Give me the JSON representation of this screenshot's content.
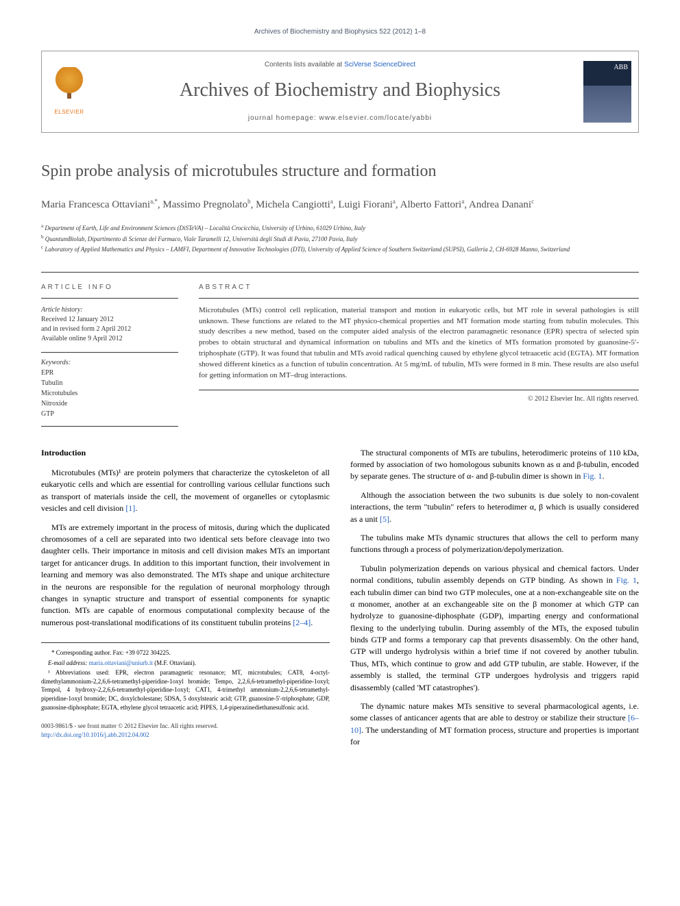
{
  "journal_ref": "Archives of Biochemistry and Biophysics 522 (2012) 1–8",
  "header": {
    "contents_prefix": "Contents lists available at ",
    "contents_link": "SciVerse ScienceDirect",
    "journal_name": "Archives of Biochemistry and Biophysics",
    "homepage_prefix": "journal homepage: ",
    "homepage_url": "www.elsevier.com/locate/yabbi",
    "elsevier": "ELSEVIER",
    "cover_abbr": "ABB"
  },
  "article": {
    "title": "Spin probe analysis of microtubules structure and formation"
  },
  "authors": [
    {
      "name": "Maria Francesca Ottaviani",
      "aff": "a,",
      "corr": "*"
    },
    {
      "name": "Massimo Pregnolato",
      "aff": "b"
    },
    {
      "name": "Michela Cangiotti",
      "aff": "a"
    },
    {
      "name": "Luigi Fiorani",
      "aff": "a"
    },
    {
      "name": "Alberto Fattori",
      "aff": "a"
    },
    {
      "name": "Andrea Danani",
      "aff": "c"
    }
  ],
  "affiliations": [
    {
      "key": "a",
      "text": "Department of Earth, Life and Environment Sciences (DiSTeVA) – Località Crocicchia, University of Urbino, 61029 Urbino, Italy"
    },
    {
      "key": "b",
      "text": "QuantumBiolab, Dipartimento di Scienze del Farmaco, Viale Taramelli 12, Università degli Studi di Pavia, 27100 Pavia, Italy"
    },
    {
      "key": "c",
      "text": "Laboratory of Applied Mathematics and Physics – LAMFI, Department of Innovative Technologies (DTI), University of Applied Science of Southern Switzerland (SUPSI), Galleria 2, CH-6928 Manno, Switzerland"
    }
  ],
  "info": {
    "section_label": "ARTICLE INFO",
    "history_label": "Article history:",
    "history": "Received 12 January 2012\nand in revised form 2 April 2012\nAvailable online 9 April 2012",
    "keywords_label": "Keywords:",
    "keywords": "EPR\nTubulin\nMicrotubules\nNitroxide\nGTP"
  },
  "abstract": {
    "section_label": "ABSTRACT",
    "text": "Microtubules (MTs) control cell replication, material transport and motion in eukaryotic cells, but MT role in several pathologies is still unknown. These functions are related to the MT physico-chemical properties and MT formation mode starting from tubulin molecules. This study describes a new method, based on the computer aided analysis of the electron paramagnetic resonance (EPR) spectra of selected spin probes to obtain structural and dynamical information on tubulins and MTs and the kinetics of MTs formation promoted by guanosine-5′-triphosphate (GTP). It was found that tubulin and MTs avoid radical quenching caused by ethylene glycol tetraacetic acid (EGTA). MT formation showed different kinetics as a function of tubulin concentration. At 5 mg/mL of tubulin, MTs were formed in 8 min. These results are also useful for getting information on MT–drug interactions.",
    "copyright": "© 2012 Elsevier Inc. All rights reserved."
  },
  "body": {
    "intro_heading": "Introduction",
    "left_paras": [
      "Microtubules (MTs)¹ are protein polymers that characterize the cytoskeleton of all eukaryotic cells and which are essential for controlling various cellular functions such as transport of materials inside the cell, the movement of organelles or cytoplasmic vesicles and cell division [1].",
      "MTs are extremely important in the process of mitosis, during which the duplicated chromosomes of a cell are separated into two identical sets before cleavage into two daughter cells. Their importance in mitosis and cell division makes MTs an important target for anticancer drugs. In addition to this important function, their involvement in learning and memory was also demonstrated. The MTs shape and unique architecture in the neurons are responsible for the regulation of neuronal morphology through changes in synaptic structure and transport of essential components for synaptic function. MTs are capable of enormous computational complexity because of the numerous post-translational modifications of its constituent tubulin proteins [2–4]."
    ],
    "right_paras": [
      "The structural components of MTs are tubulins, heterodimeric proteins of 110 kDa, formed by association of two homologous subunits known as α and β-tubulin, encoded by separate genes. The structure of α- and β-tubulin dimer is shown in Fig. 1.",
      "Although the association between the two subunits is due solely to non-covalent interactions, the term \"tubulin\" refers to heterodimer α, β which is usually considered as a unit [5].",
      "The tubulins make MTs dynamic structures that allows the cell to perform many functions through a process of polymerization/depolymerization.",
      "Tubulin polymerization depends on various physical and chemical factors. Under normal conditions, tubulin assembly depends on GTP binding. As shown in Fig. 1, each tubulin dimer can bind two GTP molecules, one at a non-exchangeable site on the α monomer, another at an exchangeable site on the β monomer at which GTP can hydrolyze to guanosine-diphosphate (GDP), imparting energy and conformational flexing to the underlying tubulin. During assembly of the MTs, the exposed tubulin binds GTP and forms a temporary cap that prevents disassembly. On the other hand, GTP will undergo hydrolysis within a brief time if not covered by another tubulin. Thus, MTs, which continue to grow and add GTP tubulin, are stable. However, if the assembly is stalled, the terminal GTP undergoes hydrolysis and triggers rapid disassembly (called 'MT catastrophes').",
      "The dynamic nature makes MTs sensitive to several pharmacological agents, i.e. some classes of anticancer agents that are able to destroy or stabilize their structure [6–10]. The understanding of MT formation process, structure and properties is important for"
    ]
  },
  "footnotes": {
    "corr": "* Corresponding author. Fax: +39 0722 304225.",
    "email_label": "E-mail address: ",
    "email": "maria.ottaviani@uniurb.it",
    "email_name": " (M.F. Ottaviani).",
    "abbrev": "¹ Abbreviations used: EPR, electron paramagnetic resonance; MT, microtubules; CAT8, 4-octyl-dimethylammonium-2,2,6,6-tetramethyl-piperidine-1oxyl bromide; Tempo, 2,2,6,6-tetramethyl-piperidine-1oxyl; Tempol, 4 hydroxy-2,2,6,6-tetramethyl-piperidine-1oxyl; CAT1, 4-trimethyl ammonium-2,2,6,6-tetramethyl-piperidine-1oxyl bromide; DC, doxylcholestane; 5DSA, 5 doxylstearic acid; GTP, guanosine-5′-triphosphate; GDP, guanosine-diphosphate; EGTA, ethylene glycol tetraacetic acid; PIPES, 1,4-piperazinediethanesulfonic acid."
  },
  "footer": {
    "issn": "0003-9861/$ - see front matter © 2012 Elsevier Inc. All rights reserved.",
    "doi": "http://dx.doi.org/10.1016/j.abb.2012.04.002"
  },
  "refs": {
    "r1": "[1]",
    "r24": "[2–4]",
    "fig1a": "Fig. 1",
    "r5": "[5]",
    "fig1b": "Fig. 1",
    "r610": "[6–10]"
  },
  "colors": {
    "link": "#2060c0",
    "text": "#000000",
    "heading_gray": "#505050"
  }
}
